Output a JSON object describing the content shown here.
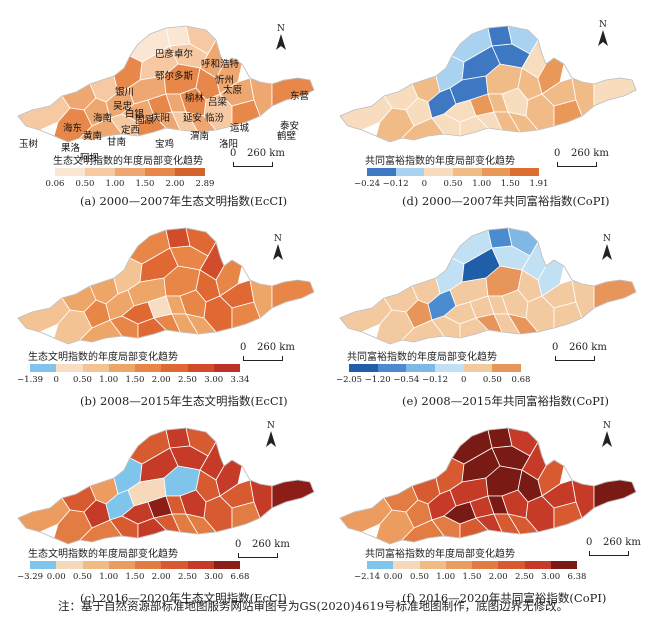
{
  "panels": [
    {
      "id": "a",
      "caption": "(a) 2000—2007年生态文明指数(EcCI)",
      "legend_title": "生态文明指数的年度局部变化趋势",
      "ticks": [
        "0.06",
        "0.50",
        "1.00",
        "1.50",
        "2.00",
        "2.89"
      ],
      "colors": [
        "#fbe6d4",
        "#f6c9a3",
        "#efa772",
        "#e8874a",
        "#d4622d"
      ]
    },
    {
      "id": "d",
      "caption": "(d) 2000—2007年共同富裕指数(CoPI)",
      "legend_title": "共同富裕指数的年度局部变化趋势",
      "ticks": [
        "−0.24",
        "−0.12",
        "0",
        "0.50",
        "1.00",
        "1.50",
        "1.91"
      ],
      "colors": [
        "#3f78c2",
        "#a8d2ef",
        "#f7dcbd",
        "#f1bb88",
        "#e99858",
        "#dc6f2f"
      ]
    },
    {
      "id": "b",
      "caption": "(b) 2008—2015年生态文明指数(EcCI)",
      "legend_title": "生态文明指数的年度局部变化趋势",
      "ticks": [
        "−1.39",
        "0",
        "0.50",
        "1.00",
        "1.50",
        "2.00",
        "2.50",
        "3.00",
        "3.34"
      ],
      "colors": [
        "#7fc4ea",
        "#f7ddc2",
        "#f3c394",
        "#eea568",
        "#e88648",
        "#df6833",
        "#d14c2b",
        "#bc3026"
      ]
    },
    {
      "id": "e",
      "caption": "(e) 2008—2015年共同富裕指数(CoPI)",
      "legend_title": "共同富裕指数的年度局部变化趋势",
      "ticks": [
        "−2.05",
        "−1.20",
        "−0.54",
        "−0.12",
        "0",
        "0.50",
        "0.68"
      ],
      "colors": [
        "#1f5ea8",
        "#4b8cd0",
        "#7fb7e5",
        "#c2e0f4",
        "#f3c9a0",
        "#e8955c"
      ]
    },
    {
      "id": "c",
      "caption": "(c) 2016—2020年生态文明指数(EcCI)",
      "legend_title": "生态文明指数的年度局部变化趋势",
      "ticks": [
        "−3.29",
        "0.00",
        "0.50",
        "1.00",
        "1.50",
        "2.00",
        "2.50",
        "3.00",
        "6.68"
      ],
      "colors": [
        "#7fc4ea",
        "#f6d9bb",
        "#f1bb86",
        "#eb9c5e",
        "#e27c42",
        "#d85a31",
        "#c63b28",
        "#8c1d17"
      ]
    },
    {
      "id": "f",
      "caption": "(f) 2016—2020年共同富裕指数(CoPI)",
      "legend_title": "共同富裕指数的年度局部变化趋势",
      "ticks": [
        "−2.14",
        "0.00",
        "0.50",
        "1.00",
        "1.50",
        "2.00",
        "2.50",
        "3.00",
        "6.38"
      ],
      "colors": [
        "#7fc4ea",
        "#f6d9bb",
        "#f1bb86",
        "#eb9c5e",
        "#e27c42",
        "#d85a31",
        "#c63b28",
        "#7a1a14"
      ]
    }
  ],
  "scale_zero": "0",
  "scale_distance": "260 km",
  "north_label": "N",
  "place_names": [
    "巴彦卓尔",
    "呼和浩特",
    "鄂尔多斯",
    "忻州",
    "银川",
    "太原",
    "榆林",
    "吕梁",
    "东营",
    "白银",
    "吴忠",
    "延安",
    "临汾",
    "泰安",
    "海东",
    "海南",
    "固原",
    "庆阳",
    "运城",
    "鹤壁",
    "黄南",
    "定西",
    "甘南",
    "渭南",
    "洛阳",
    "玉树",
    "果洛",
    "宝鸡",
    "阿坝"
  ],
  "footer": "注：基于自然资源部标准地图服务网站审图号为GS(2020)4619号标准地图制作，底图边界无修改。"
}
